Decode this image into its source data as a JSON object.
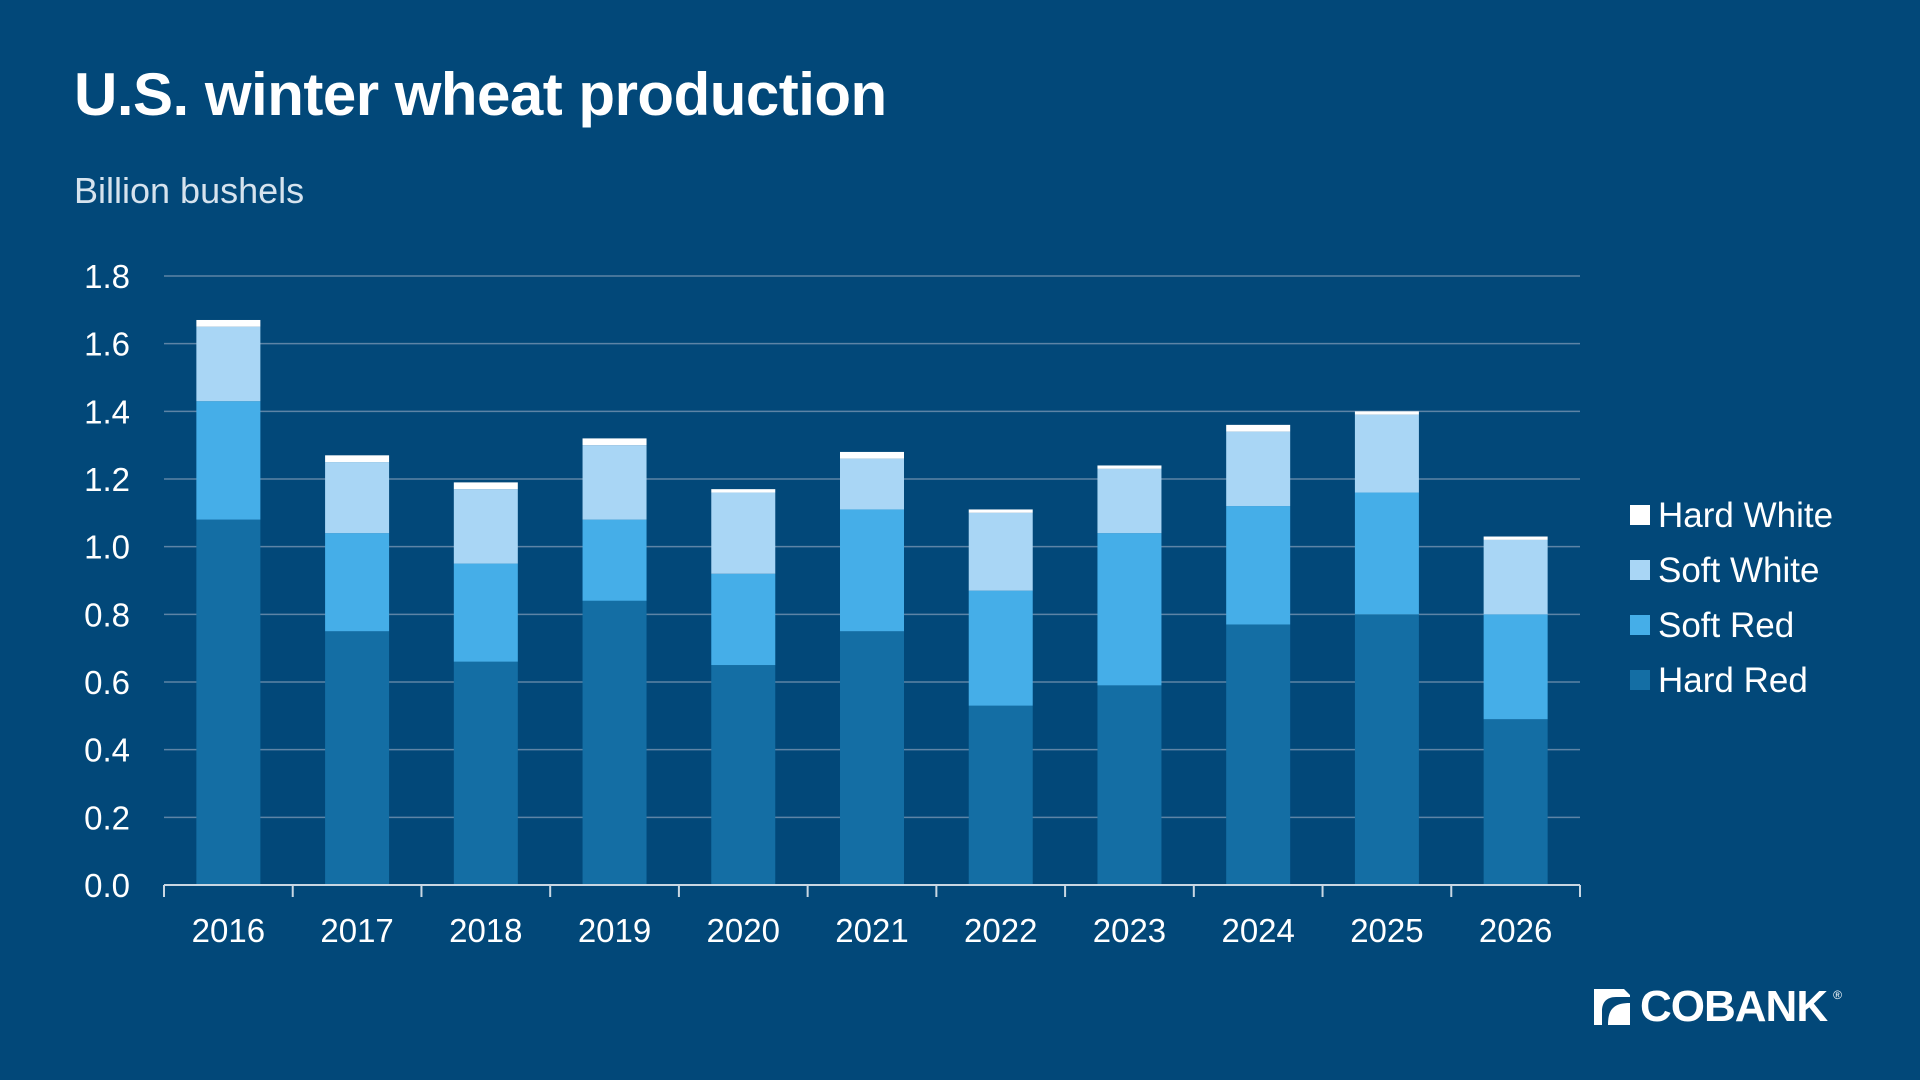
{
  "header": {
    "title": "U.S. winter wheat production",
    "subtitle": "Billion bushels"
  },
  "logo": {
    "text": "COBANK",
    "mark": "®",
    "icon": "cobank-logo-icon"
  },
  "colors": {
    "background": "#024879",
    "Hard Red": "#146ea4",
    "Soft Red": "#45aee8",
    "Soft White": "#a9d6f5",
    "Hard White": "#ffffff",
    "grid": "#5d84a6"
  },
  "chart_data": {
    "type": "bar",
    "stacked": true,
    "title": "U.S. winter wheat production",
    "ylabel": "Billion bushels",
    "xlabel": "",
    "ylim": [
      0,
      1.8
    ],
    "yticks": [
      "0.0",
      "0.2",
      "0.4",
      "0.6",
      "0.8",
      "1.0",
      "1.2",
      "1.4",
      "1.6",
      "1.8"
    ],
    "grid": true,
    "legend_position": "right",
    "categories": [
      "2016",
      "2017",
      "2018",
      "2019",
      "2020",
      "2021",
      "2022",
      "2023",
      "2024",
      "2025",
      "2026"
    ],
    "series": [
      {
        "name": "Hard Red",
        "values": [
          1.08,
          0.75,
          0.66,
          0.84,
          0.65,
          0.75,
          0.53,
          0.59,
          0.77,
          0.8,
          0.49
        ]
      },
      {
        "name": "Soft Red",
        "values": [
          0.35,
          0.29,
          0.29,
          0.24,
          0.27,
          0.36,
          0.34,
          0.45,
          0.35,
          0.36,
          0.31
        ]
      },
      {
        "name": "Soft White",
        "values": [
          0.22,
          0.21,
          0.22,
          0.22,
          0.24,
          0.15,
          0.23,
          0.19,
          0.22,
          0.23,
          0.22
        ]
      },
      {
        "name": "Hard White",
        "values": [
          0.02,
          0.02,
          0.02,
          0.02,
          0.01,
          0.02,
          0.01,
          0.01,
          0.02,
          0.01,
          0.01
        ]
      }
    ],
    "legend_order": [
      "Hard White",
      "Soft White",
      "Soft Red",
      "Hard Red"
    ]
  }
}
